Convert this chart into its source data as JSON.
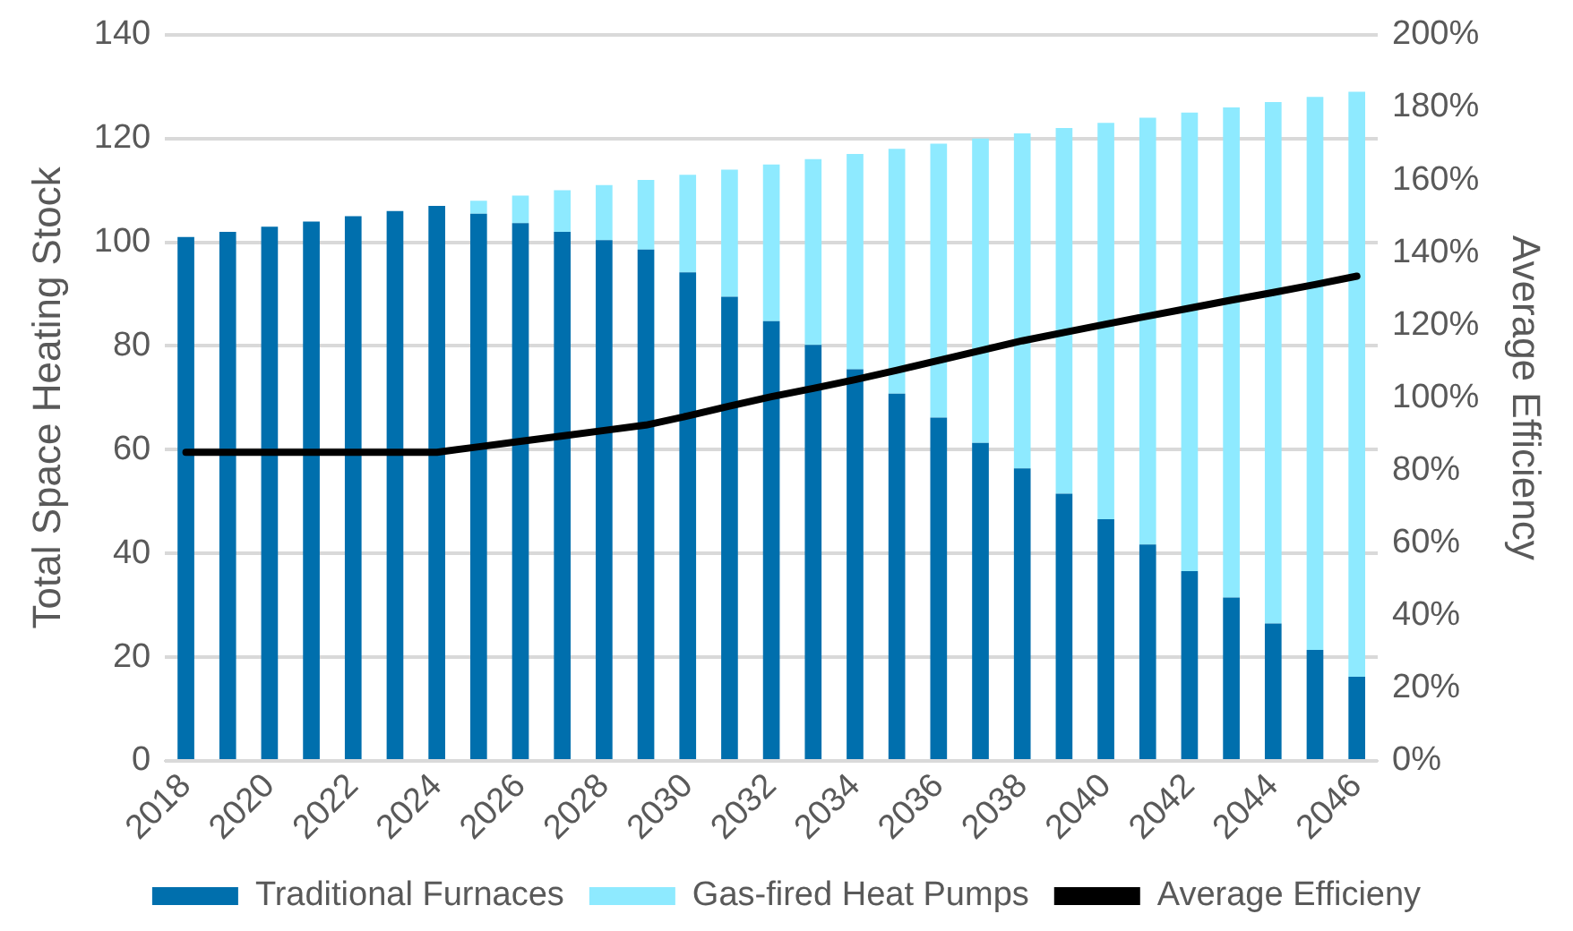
{
  "chart_data": {
    "type": "bar",
    "stacked": true,
    "ylabel": "Total Space Heating Stock",
    "y2label": "Average Efficiency",
    "categories": [
      "2018",
      null,
      "2020",
      null,
      "2022",
      null,
      "2024",
      null,
      "2026",
      null,
      "2028",
      null,
      "2030",
      null,
      "2032",
      null,
      "2034",
      null,
      "2036",
      null,
      "2038",
      null,
      "2040",
      null,
      "2042",
      null,
      "2044",
      null,
      "2046"
    ],
    "series": [
      {
        "name": "Traditional Furnaces",
        "color": "#006fad",
        "values": [
          101,
          102,
          103,
          104,
          105,
          106,
          107,
          105.5,
          103.7,
          102,
          100.4,
          98.6,
          94.2,
          89.5,
          84.8,
          80.2,
          75.5,
          70.8,
          66.2,
          61.3,
          56.4,
          51.5,
          46.6,
          41.7,
          36.6,
          31.5,
          26.5,
          21.4,
          16.2
        ]
      },
      {
        "name": "Gas-fired Heat Pumps",
        "color": "#8eeaff",
        "values": [
          0,
          0,
          0,
          0,
          0,
          0,
          0,
          2.5,
          5.3,
          8,
          10.6,
          13.4,
          18.8,
          24.5,
          30.2,
          35.8,
          41.5,
          47.2,
          52.8,
          58.7,
          64.6,
          70.5,
          76.4,
          82.3,
          88.4,
          94.5,
          100.5,
          106.6,
          112.8
        ]
      },
      {
        "name": "Average Efficieny",
        "type": "line",
        "axis": "y2",
        "color": "#000000",
        "values": [
          85,
          85,
          85,
          85,
          85,
          85,
          85,
          86.5,
          88,
          89.5,
          91,
          92.5,
          95,
          97.7,
          100.3,
          102.6,
          105,
          107.6,
          110.3,
          113,
          115.7,
          118,
          120.3,
          122.5,
          124.7,
          126.9,
          129,
          131.2,
          133.5
        ]
      }
    ],
    "ylim": [
      0,
      140
    ],
    "yticks": [
      0,
      20,
      40,
      60,
      80,
      100,
      120,
      140
    ],
    "y2lim": [
      0,
      200
    ],
    "y2ticks": [
      {
        "value": 0,
        "label": "0%"
      },
      {
        "value": 20,
        "label": "20%"
      },
      {
        "value": 40,
        "label": "40%"
      },
      {
        "value": 60,
        "label": "60%"
      },
      {
        "value": 80,
        "label": "80%"
      },
      {
        "value": 100,
        "label": "100%"
      },
      {
        "value": 120,
        "label": "120%"
      },
      {
        "value": 140,
        "label": "140%"
      },
      {
        "value": 160,
        "label": "160%"
      },
      {
        "value": 180,
        "label": "180%"
      },
      {
        "value": 200,
        "label": "200%"
      }
    ],
    "grid": "y",
    "legend": "bottom",
    "marker": "none",
    "line_style": "solid"
  }
}
